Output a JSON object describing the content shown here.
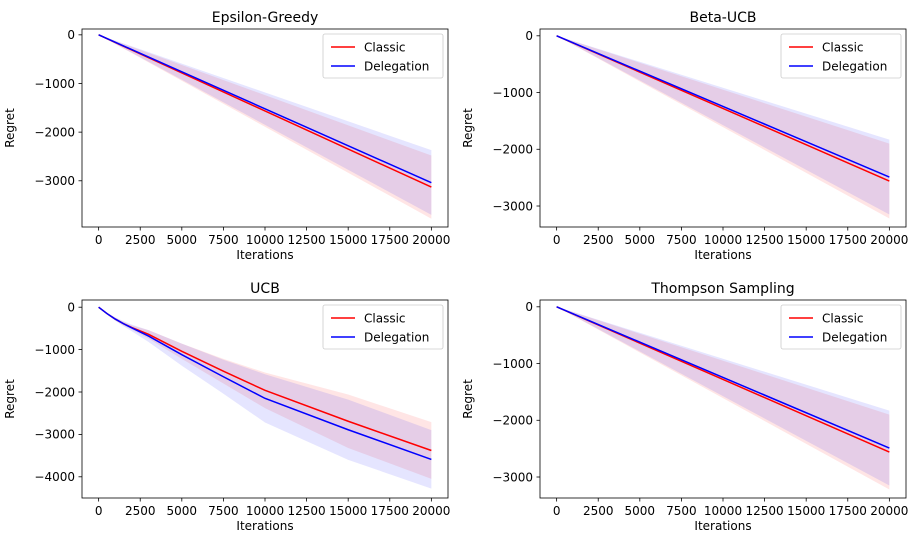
{
  "chart_data": [
    {
      "type": "line",
      "title": "Epsilon-Greedy",
      "xlabel": "Iterations",
      "ylabel": "Regret",
      "xlim": [
        -1000,
        21000
      ],
      "ylim": [
        -3950,
        120
      ],
      "xticks": [
        0,
        2500,
        5000,
        7500,
        10000,
        12500,
        15000,
        17500,
        20000
      ],
      "yticks": [
        0,
        -1000,
        -2000,
        -3000
      ],
      "ytick_labels": [
        "0",
        "−1000",
        "−2000",
        "−3000"
      ],
      "grid": false,
      "legend": "top-right",
      "series": [
        {
          "name": "Classic",
          "color": "#ff0000",
          "x": [
            0,
            20000
          ],
          "y": [
            0,
            -3130
          ],
          "band_low": [
            0,
            -3780
          ],
          "band_high": [
            0,
            -2480
          ]
        },
        {
          "name": "Delegation",
          "color": "#0000ff",
          "x": [
            0,
            20000
          ],
          "y": [
            0,
            -3040
          ],
          "band_low": [
            0,
            -3700
          ],
          "band_high": [
            0,
            -2370
          ]
        }
      ]
    },
    {
      "type": "line",
      "title": "Beta-UCB",
      "xlabel": "Iterations",
      "ylabel": "Regret",
      "xlim": [
        -1000,
        21000
      ],
      "ylim": [
        -3370,
        120
      ],
      "xticks": [
        0,
        2500,
        5000,
        7500,
        10000,
        12500,
        15000,
        17500,
        20000
      ],
      "yticks": [
        0,
        -1000,
        -2000,
        -3000
      ],
      "ytick_labels": [
        "0",
        "−1000",
        "−2000",
        "−3000"
      ],
      "grid": false,
      "legend": "top-right",
      "series": [
        {
          "name": "Classic",
          "color": "#ff0000",
          "x": [
            0,
            20000
          ],
          "y": [
            0,
            -2560
          ],
          "band_low": [
            0,
            -3220
          ],
          "band_high": [
            0,
            -1900
          ]
        },
        {
          "name": "Delegation",
          "color": "#0000ff",
          "x": [
            0,
            20000
          ],
          "y": [
            0,
            -2490
          ],
          "band_low": [
            0,
            -3150
          ],
          "band_high": [
            0,
            -1830
          ]
        }
      ]
    },
    {
      "type": "line",
      "title": "UCB",
      "xlabel": "Iterations",
      "ylabel": "Regret",
      "xlim": [
        -1000,
        21000
      ],
      "ylim": [
        -4500,
        170
      ],
      "xticks": [
        0,
        2500,
        5000,
        7500,
        10000,
        12500,
        15000,
        17500,
        20000
      ],
      "yticks": [
        0,
        -1000,
        -2000,
        -3000,
        -4000
      ],
      "ytick_labels": [
        "0",
        "−1000",
        "−2000",
        "−3000",
        "−4000"
      ],
      "grid": false,
      "legend": "top-right",
      "series": [
        {
          "name": "Classic",
          "color": "#ff0000",
          "x": [
            0,
            500,
            1000,
            1500,
            2000,
            3000,
            5000,
            7500,
            10000,
            15000,
            20000
          ],
          "y": [
            0,
            -150,
            -280,
            -390,
            -480,
            -640,
            -1040,
            -1510,
            -1960,
            -2690,
            -3380
          ],
          "band_low": [
            0,
            -170,
            -310,
            -430,
            -530,
            -740,
            -1220,
            -1800,
            -2380,
            -3320,
            -4050
          ],
          "band_high": [
            0,
            -130,
            -250,
            -350,
            -430,
            -540,
            -860,
            -1220,
            -1540,
            -2060,
            -2710
          ]
        },
        {
          "name": "Delegation",
          "color": "#0000ff",
          "x": [
            0,
            500,
            1000,
            1500,
            2000,
            3000,
            5000,
            7500,
            10000,
            15000,
            20000
          ],
          "y": [
            0,
            -150,
            -280,
            -390,
            -490,
            -680,
            -1120,
            -1640,
            -2150,
            -2890,
            -3590
          ],
          "band_low": [
            0,
            -175,
            -320,
            -450,
            -570,
            -820,
            -1380,
            -2040,
            -2720,
            -3600,
            -4280
          ],
          "band_high": [
            0,
            -125,
            -240,
            -330,
            -410,
            -540,
            -860,
            -1240,
            -1580,
            -2180,
            -2900
          ]
        }
      ]
    },
    {
      "type": "line",
      "title": "Thompson Sampling",
      "xlabel": "Iterations",
      "ylabel": "Regret",
      "xlim": [
        -1000,
        21000
      ],
      "ylim": [
        -3370,
        120
      ],
      "xticks": [
        0,
        2500,
        5000,
        7500,
        10000,
        12500,
        15000,
        17500,
        20000
      ],
      "yticks": [
        0,
        -1000,
        -2000,
        -3000
      ],
      "ytick_labels": [
        "0",
        "−1000",
        "−2000",
        "−3000"
      ],
      "grid": false,
      "legend": "top-right",
      "series": [
        {
          "name": "Classic",
          "color": "#ff0000",
          "x": [
            0,
            20000
          ],
          "y": [
            0,
            -2560
          ],
          "band_low": [
            0,
            -3220
          ],
          "band_high": [
            0,
            -1900
          ]
        },
        {
          "name": "Delegation",
          "color": "#0000ff",
          "x": [
            0,
            20000
          ],
          "y": [
            0,
            -2490
          ],
          "band_low": [
            0,
            -3150
          ],
          "band_high": [
            0,
            -1830
          ]
        }
      ]
    }
  ]
}
